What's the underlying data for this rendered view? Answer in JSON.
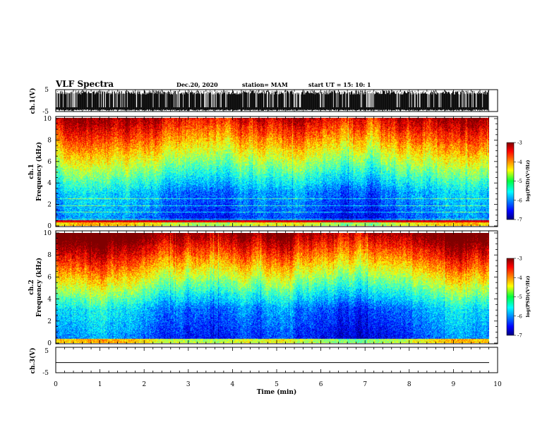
{
  "header": {
    "title": "VLF Spectra",
    "date": "Dec.20, 2020",
    "station": "station= MAM",
    "start": "start  UT  =    15: 10: 1"
  },
  "chart_data": [
    {
      "type": "line",
      "name": "ch1-waveform",
      "ylabel": "ch.1(V)",
      "ylim": [
        -5,
        5
      ],
      "yticks": [
        "5",
        "-5"
      ],
      "xlim": [
        0,
        10
      ],
      "description_level": "dense impulsive signal spanning full range"
    },
    {
      "type": "heatmap",
      "name": "ch1-spectrogram",
      "ylabel_top": "ch.1",
      "ylabel": "Frequency  (kHz)",
      "ylim": [
        0,
        10
      ],
      "yticks": [
        "0",
        "2",
        "4",
        "6",
        "8",
        "10"
      ],
      "xlim": [
        0,
        10
      ],
      "data_end_min": 9.8,
      "colorbar": {
        "ticks": [
          "-3",
          "-4",
          "-5",
          "-6",
          "-7"
        ],
        "label": "log(PSD)(V²/Hz)"
      }
    },
    {
      "type": "heatmap",
      "name": "ch2-spectrogram",
      "ylabel_top": "ch.2",
      "ylabel": "Frequency  (kHz)",
      "ylim": [
        0,
        10
      ],
      "yticks": [
        "0",
        "2",
        "4",
        "6",
        "8",
        "10"
      ],
      "xlim": [
        0,
        10
      ],
      "data_end_min": 9.8,
      "colorbar": {
        "ticks": [
          "-3",
          "-4",
          "-5",
          "-6",
          "-7"
        ],
        "label": "log(PSD)(V²/Hz)"
      }
    },
    {
      "type": "line",
      "name": "ch3-waveform",
      "ylabel": "ch.3(V)",
      "ylim": [
        -5,
        5
      ],
      "yticks": [
        "5",
        "-5"
      ],
      "xlim": [
        0,
        10
      ],
      "xticks": [
        "0",
        "1",
        "2",
        "3",
        "4",
        "5",
        "6",
        "7",
        "8",
        "9",
        "10"
      ],
      "xlabel": "Time  (min)",
      "constant_value": -1
    }
  ]
}
